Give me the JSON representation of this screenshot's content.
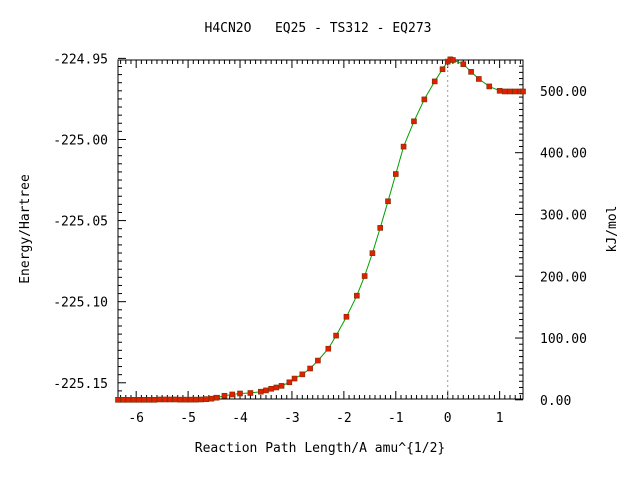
{
  "chart_data": {
    "type": "line",
    "title": "H4CN2O   EQ25 - TS312 - EQ273",
    "xlabel": "Reaction Path Length/A amu^{1/2}",
    "ylabel": "Energy/Hartree",
    "y2label": "kJ/mol",
    "xlim": [
      -6.35,
      1.45
    ],
    "ylim": [
      -225.16,
      -224.951
    ],
    "x_ticks": [
      "-6",
      "-5",
      "-4",
      "-3",
      "-2",
      "-1",
      "0",
      "1"
    ],
    "y_ticks": [
      "-224.95",
      "-225.00",
      "-225.05",
      "-225.10",
      "-225.15"
    ],
    "y2_ticks": [
      "0.00",
      "100.00",
      "200.00",
      "300.00",
      "400.00",
      "500.00"
    ],
    "grid": false,
    "ts_x": 0.0,
    "series": [
      {
        "line_color": "#00a000",
        "marker_color": "#e02000",
        "x": [
          -6.35,
          -6.25,
          -6.15,
          -6.05,
          -5.95,
          -5.85,
          -5.75,
          -5.65,
          -5.55,
          -5.45,
          -5.35,
          -5.25,
          -5.15,
          -5.05,
          -4.95,
          -4.85,
          -4.75,
          -4.65,
          -4.55,
          -4.45,
          -4.3,
          -4.15,
          -4.0,
          -3.8,
          -3.6,
          -3.5,
          -3.4,
          -3.3,
          -3.2,
          -3.05,
          -2.95,
          -2.8,
          -2.65,
          -2.5,
          -2.3,
          -2.15,
          -1.95,
          -1.75,
          -1.6,
          -1.45,
          -1.3,
          -1.15,
          -1.0,
          -0.85,
          -0.65,
          -0.45,
          -0.25,
          -0.1,
          0.0,
          0.05,
          0.1,
          0.3,
          0.45,
          0.6,
          0.8,
          1.0,
          1.1,
          1.2,
          1.3,
          1.4,
          1.45
        ],
        "y": [
          -225.1605,
          -225.1605,
          -225.1605,
          -225.1605,
          -225.1605,
          -225.1605,
          -225.1605,
          -225.1605,
          -225.1603,
          -225.1603,
          -225.1603,
          -225.1603,
          -225.1604,
          -225.1604,
          -225.1604,
          -225.1604,
          -225.1603,
          -225.1601,
          -225.1598,
          -225.1592,
          -225.158,
          -225.1572,
          -225.1566,
          -225.1563,
          -225.1555,
          -225.1547,
          -225.1537,
          -225.1529,
          -225.1519,
          -225.1497,
          -225.1474,
          -225.1448,
          -225.1412,
          -225.1363,
          -225.129,
          -225.1209,
          -225.1093,
          -225.0963,
          -225.0842,
          -225.0701,
          -225.0545,
          -225.0381,
          -225.0213,
          -225.0044,
          -224.9888,
          -224.9753,
          -224.9642,
          -224.9567,
          -224.952,
          -224.9506,
          -224.951,
          -224.9536,
          -224.9583,
          -224.9627,
          -224.9673,
          -224.97,
          -224.9704,
          -224.9704,
          -224.9704,
          -224.9704,
          -224.9704
        ]
      }
    ]
  }
}
